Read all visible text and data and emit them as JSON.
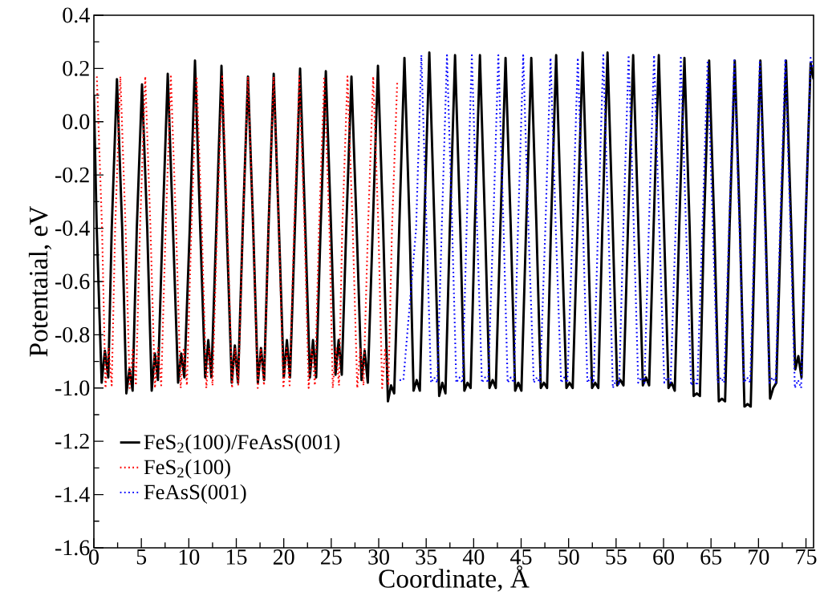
{
  "chart_data": {
    "type": "line",
    "xlabel": "Coordinate, Å",
    "ylabel": "Potentaial, eV",
    "xlim": [
      0,
      75.8
    ],
    "ylim": [
      -1.6,
      0.4
    ],
    "xticks": [
      0,
      {
        "value": 2.5,
        "label": null
      },
      5,
      {
        "value": 7.5,
        "label": null
      },
      10,
      {
        "value": 12.5,
        "label": null
      },
      15,
      {
        "value": 17.5,
        "label": null
      },
      20,
      {
        "value": 22.5,
        "label": null
      },
      25,
      {
        "value": 27.5,
        "label": null
      },
      30,
      {
        "value": 32.5,
        "label": null
      },
      35,
      {
        "value": 37.5,
        "label": null
      },
      40,
      {
        "value": 42.5,
        "label": null
      },
      45,
      {
        "value": 47.5,
        "label": null
      },
      50,
      {
        "value": 52.5,
        "label": null
      },
      55,
      {
        "value": 57.5,
        "label": null
      },
      60,
      {
        "value": 62.5,
        "label": null
      },
      65,
      {
        "value": 67.5,
        "label": null
      },
      70,
      {
        "value": 72.5,
        "label": null
      },
      75
    ],
    "yticks": [
      0.4,
      {
        "value": 0.3,
        "label": null
      },
      0.2,
      {
        "value": 0.1,
        "label": null
      },
      {
        "value": 0,
        "label": "0.0"
      },
      {
        "value": -0.1,
        "label": null
      },
      -0.2,
      {
        "value": -0.3,
        "label": null
      },
      -0.4,
      {
        "value": -0.5,
        "label": null
      },
      -0.6,
      {
        "value": -0.7,
        "label": null
      },
      -0.8,
      {
        "value": -0.9,
        "label": null
      },
      {
        "value": -1,
        "label": "-1.0"
      },
      {
        "value": -1.1,
        "label": null
      },
      -1.2,
      {
        "value": -1.3,
        "label": null
      },
      -1.4,
      {
        "value": -1.5,
        "label": null
      },
      -1.6
    ],
    "legend": "bottom left",
    "series": [
      {
        "name": "FeS$_{2}$(100)/FeAsS(001)",
        "color": "#000000",
        "line_style": "solid",
        "x": [
          0.0,
          0.3,
          0.82,
          1.16,
          1.52,
          1.88,
          2.43,
          2.98,
          3.42,
          3.75,
          4.08,
          4.52,
          5.07,
          5.62,
          6.09,
          6.42,
          6.75,
          7.23,
          7.78,
          8.33,
          8.87,
          9.2,
          9.53,
          10.1,
          10.65,
          11.2,
          11.72,
          12.05,
          12.38,
          12.89,
          13.44,
          13.99,
          14.52,
          14.85,
          15.18,
          15.68,
          16.23,
          16.78,
          17.27,
          17.6,
          17.93,
          18.39,
          18.94,
          19.49,
          20.0,
          20.33,
          20.66,
          21.17,
          21.72,
          22.27,
          22.75,
          23.08,
          23.41,
          23.88,
          24.43,
          24.98,
          25.45,
          25.78,
          26.11,
          26.58,
          27.13,
          27.68,
          28.19,
          28.52,
          28.85,
          29.37,
          29.92,
          30.47,
          30.97,
          31.3,
          31.63,
          32.16,
          32.71,
          33.26,
          33.67,
          34.0,
          34.33,
          34.78,
          35.33,
          35.88,
          36.37,
          36.7,
          37.03,
          37.49,
          38.04,
          38.59,
          39.02,
          39.35,
          39.68,
          40.11,
          40.66,
          41.21,
          41.67,
          42.0,
          42.33,
          42.81,
          43.36,
          43.91,
          44.37,
          44.7,
          45.03,
          45.52,
          46.07,
          46.62,
          47.07,
          47.4,
          47.73,
          48.14,
          48.69,
          49.24,
          49.77,
          50.1,
          50.43,
          50.93,
          51.48,
          52.03,
          52.47,
          52.8,
          53.13,
          53.55,
          54.1,
          54.65,
          55.12,
          55.45,
          55.78,
          56.25,
          56.8,
          57.35,
          57.82,
          58.15,
          58.48,
          58.95,
          59.5,
          60.05,
          60.52,
          60.85,
          61.18,
          61.65,
          62.2,
          62.75,
          63.17,
          63.5,
          63.83,
          64.25,
          64.8,
          65.35,
          65.82,
          66.15,
          66.48,
          66.95,
          67.5,
          68.05,
          68.52,
          68.85,
          69.18,
          69.65,
          70.2,
          70.75,
          71.22,
          71.55,
          71.88,
          72.35,
          72.9,
          73.45,
          73.87,
          74.2,
          74.53,
          74.94,
          75.49,
          75.8
        ],
        "values": [
          0.1,
          -0.4,
          -0.98,
          -0.86,
          -0.96,
          -0.4,
          0.16,
          -0.4,
          -1.02,
          -0.93,
          -1.01,
          -0.4,
          0.14,
          -0.4,
          -1.01,
          -0.87,
          -0.97,
          -0.4,
          0.18,
          -0.4,
          -0.98,
          -0.87,
          -0.96,
          -0.4,
          0.23,
          -0.4,
          -0.96,
          -0.82,
          -0.96,
          -0.4,
          0.21,
          -0.4,
          -0.98,
          -0.84,
          -0.98,
          -0.4,
          0.17,
          -0.4,
          -0.98,
          -0.85,
          -0.97,
          -0.4,
          0.18,
          -0.4,
          -0.96,
          -0.82,
          -0.96,
          -0.4,
          0.2,
          -0.4,
          -0.96,
          -0.82,
          -0.96,
          -0.4,
          0.19,
          -0.4,
          -0.95,
          -0.82,
          -0.95,
          -0.4,
          0.17,
          -0.4,
          -0.97,
          -0.86,
          -0.98,
          -0.4,
          0.21,
          -0.4,
          -1.05,
          -0.99,
          -1.02,
          -0.4,
          0.24,
          -0.4,
          -1.01,
          -0.97,
          -1.01,
          -0.4,
          0.26,
          -0.4,
          -1.03,
          -0.98,
          -1.02,
          -0.4,
          0.25,
          -0.4,
          -1.01,
          -0.98,
          -1.0,
          -0.4,
          0.25,
          -0.4,
          -1.0,
          -0.97,
          -1.0,
          -0.4,
          0.24,
          -0.4,
          -1.01,
          -0.98,
          -1.01,
          -0.4,
          0.24,
          -0.4,
          -1.0,
          -0.98,
          -1.0,
          -0.4,
          0.25,
          -0.4,
          -1.0,
          -0.98,
          -1.0,
          -0.4,
          0.26,
          -0.4,
          -1.0,
          -0.98,
          -1.0,
          -0.4,
          0.26,
          -0.4,
          -0.99,
          -0.97,
          -0.99,
          -0.4,
          0.25,
          -0.4,
          -0.99,
          -0.96,
          -0.99,
          -0.4,
          0.25,
          -0.4,
          -1.0,
          -0.98,
          -1.01,
          -0.4,
          0.24,
          -0.4,
          -1.03,
          -1.02,
          -1.03,
          -0.4,
          0.23,
          -0.4,
          -1.05,
          -1.04,
          -1.05,
          -0.4,
          0.23,
          -0.4,
          -1.07,
          -1.06,
          -1.07,
          -0.4,
          0.23,
          -0.4,
          -1.04,
          -1.0,
          -0.98,
          -0.4,
          0.23,
          -0.4,
          -0.93,
          -0.88,
          -0.96,
          -0.4,
          0.22,
          0.16
        ]
      },
      {
        "name": "FeS$_{2}$(100)",
        "color": "#ff0000",
        "line_style": "dotted",
        "x": [
          0.31,
          0.86,
          1.22,
          1.55,
          1.88,
          2.24,
          2.79,
          3.34,
          3.77,
          4.1,
          4.43,
          4.86,
          5.41,
          5.96,
          6.43,
          6.76,
          7.09,
          7.56,
          8.11,
          8.66,
          9.14,
          9.47,
          9.8,
          10.27,
          10.82,
          11.37,
          11.84,
          12.17,
          12.5,
          12.97,
          13.52,
          14.07,
          14.55,
          14.88,
          15.21,
          15.68,
          16.23,
          16.78,
          17.26,
          17.59,
          17.92,
          18.39,
          18.94,
          19.49,
          19.96,
          20.29,
          20.62,
          21.09,
          21.64,
          22.19,
          22.62,
          22.95,
          23.28,
          23.71,
          24.26,
          24.81,
          25.16,
          25.49,
          25.82,
          26.16,
          26.71,
          27.26,
          27.74,
          28.07,
          28.4,
          28.87,
          29.42,
          29.97,
          30.36,
          30.69,
          31.02,
          31.4,
          31.95
        ],
        "values": [
          0.17,
          -0.4,
          -1.0,
          -0.85,
          -0.99,
          -0.4,
          0.17,
          -0.4,
          -1.0,
          -0.85,
          -0.99,
          -0.4,
          0.17,
          -0.4,
          -1.0,
          -0.85,
          -0.99,
          -0.4,
          0.17,
          -0.4,
          -1.0,
          -0.85,
          -0.99,
          -0.4,
          0.17,
          -0.4,
          -1.0,
          -0.85,
          -0.99,
          -0.4,
          0.17,
          -0.4,
          -1.0,
          -0.85,
          -0.99,
          -0.4,
          0.17,
          -0.4,
          -1.0,
          -0.85,
          -0.99,
          -0.4,
          0.17,
          -0.4,
          -1.0,
          -0.85,
          -0.99,
          -0.4,
          0.17,
          -0.4,
          -1.0,
          -0.85,
          -0.99,
          -0.4,
          0.17,
          -0.4,
          -1.0,
          -0.85,
          -0.99,
          -0.4,
          0.17,
          -0.4,
          -1.0,
          -0.85,
          -0.99,
          -0.4,
          0.17,
          -0.4,
          -1.0,
          -0.85,
          -0.99,
          -0.4,
          0.15
        ]
      },
      {
        "name": "FeAsS(001)",
        "color": "#0000ff",
        "line_style": "dotted",
        "x": [
          32.2,
          32.6,
          33.94,
          34.49,
          35.04,
          35.51,
          35.84,
          36.17,
          36.64,
          37.19,
          37.74,
          38.17,
          38.5,
          38.83,
          39.26,
          39.81,
          40.36,
          40.87,
          41.2,
          41.53,
          42.05,
          42.6,
          43.15,
          43.58,
          43.91,
          44.24,
          44.67,
          45.22,
          45.77,
          46.33,
          46.66,
          46.99,
          47.55,
          48.1,
          48.65,
          49.21,
          49.54,
          49.87,
          50.42,
          50.97,
          51.52,
          51.98,
          52.31,
          52.64,
          53.1,
          53.65,
          54.2,
          54.66,
          54.99,
          55.32,
          55.77,
          56.32,
          56.87,
          57.33,
          57.66,
          57.99,
          58.45,
          59.0,
          59.55,
          60.08,
          60.41,
          60.74,
          61.27,
          61.82,
          62.37,
          62.9,
          63.23,
          63.56,
          64.09,
          64.64,
          65.19,
          65.72,
          66.05,
          66.38,
          66.9,
          67.45,
          68.0,
          68.47,
          68.8,
          69.13,
          69.59,
          70.14,
          70.69,
          71.15,
          71.48,
          71.81,
          72.27,
          72.82,
          73.37,
          73.83,
          74.16,
          74.49,
          74.94,
          75.49,
          75.8
        ],
        "values": [
          -0.97,
          -0.97,
          -0.4,
          0.25,
          -0.4,
          -0.98,
          -0.96,
          -0.98,
          -0.4,
          0.25,
          -0.4,
          -0.98,
          -0.96,
          -0.98,
          -0.4,
          0.25,
          -0.4,
          -0.98,
          -0.96,
          -0.98,
          -0.4,
          0.25,
          -0.4,
          -0.98,
          -0.96,
          -0.98,
          -0.4,
          0.25,
          -0.4,
          -0.98,
          -0.96,
          -0.98,
          -0.4,
          0.24,
          -0.4,
          -0.98,
          -0.96,
          -0.98,
          -0.4,
          0.24,
          -0.4,
          -0.98,
          -0.96,
          -0.98,
          -0.4,
          0.25,
          -0.4,
          -1.0,
          -0.97,
          -0.99,
          -0.4,
          0.25,
          -0.4,
          -0.98,
          -0.96,
          -0.98,
          -0.4,
          0.25,
          -0.4,
          -0.98,
          -0.96,
          -0.98,
          -0.4,
          0.24,
          -0.4,
          -0.99,
          -0.97,
          -0.99,
          -0.4,
          0.23,
          -0.4,
          -0.98,
          -0.96,
          -0.98,
          -0.4,
          0.23,
          -0.4,
          -0.98,
          -0.96,
          -0.98,
          -0.4,
          0.23,
          -0.4,
          -0.98,
          -0.96,
          -0.98,
          -0.4,
          0.23,
          -0.4,
          -1.0,
          -0.97,
          -1.0,
          -0.4,
          0.24,
          0.2
        ]
      }
    ]
  }
}
